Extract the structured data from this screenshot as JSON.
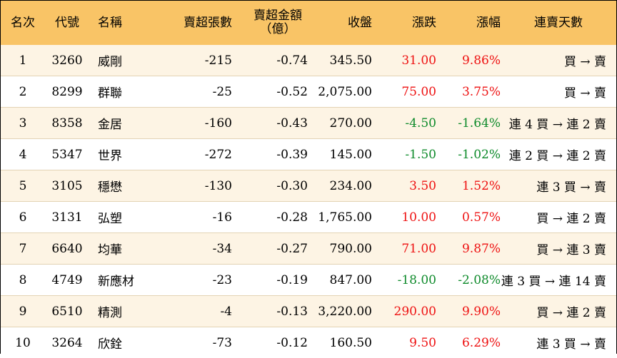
{
  "headers": {
    "rank": "名次",
    "code": "代號",
    "name": "名稱",
    "net_sell_lots": "賣超張數",
    "net_sell_amount_line1": "賣超金額",
    "net_sell_amount_line2": "（億）",
    "close": "收盤",
    "change": "漲跌",
    "change_pct": "漲幅",
    "streak": "連賣天數"
  },
  "colors": {
    "header_bg": "#f9c466",
    "row_alt_bg": "#fdf4e4",
    "up": "#ee1111",
    "down": "#0d8a2a"
  },
  "rows": [
    {
      "rank": "1",
      "code": "3260",
      "name": "威剛",
      "lots": "-215",
      "amount": "-0.74",
      "close": "345.50",
      "change": "31.00",
      "pct": "9.86%",
      "dir": "pos",
      "streak": "買 → 賣"
    },
    {
      "rank": "2",
      "code": "8299",
      "name": "群聯",
      "lots": "-25",
      "amount": "-0.52",
      "close": "2,075.00",
      "change": "75.00",
      "pct": "3.75%",
      "dir": "pos",
      "streak": "買 → 賣"
    },
    {
      "rank": "3",
      "code": "8358",
      "name": "金居",
      "lots": "-160",
      "amount": "-0.43",
      "close": "270.00",
      "change": "-4.50",
      "pct": "-1.64%",
      "dir": "neg",
      "streak": "連 4 買 → 連 2 賣"
    },
    {
      "rank": "4",
      "code": "5347",
      "name": "世界",
      "lots": "-272",
      "amount": "-0.39",
      "close": "145.00",
      "change": "-1.50",
      "pct": "-1.02%",
      "dir": "neg",
      "streak": "連 2 買 → 連 2 賣"
    },
    {
      "rank": "5",
      "code": "3105",
      "name": "穩懋",
      "lots": "-130",
      "amount": "-0.30",
      "close": "234.00",
      "change": "3.50",
      "pct": "1.52%",
      "dir": "pos",
      "streak": "連 3 買 → 賣"
    },
    {
      "rank": "6",
      "code": "3131",
      "name": "弘塑",
      "lots": "-16",
      "amount": "-0.28",
      "close": "1,765.00",
      "change": "10.00",
      "pct": "0.57%",
      "dir": "pos",
      "streak": "買 → 連 2 賣"
    },
    {
      "rank": "7",
      "code": "6640",
      "name": "均華",
      "lots": "-34",
      "amount": "-0.27",
      "close": "790.00",
      "change": "71.00",
      "pct": "9.87%",
      "dir": "pos",
      "streak": "買 → 連 3 賣"
    },
    {
      "rank": "8",
      "code": "4749",
      "name": "新應材",
      "lots": "-23",
      "amount": "-0.19",
      "close": "847.00",
      "change": "-18.00",
      "pct": "-2.08%",
      "dir": "neg",
      "streak": "連 3 買 → 連 14 賣"
    },
    {
      "rank": "9",
      "code": "6510",
      "name": "精測",
      "lots": "-4",
      "amount": "-0.13",
      "close": "3,220.00",
      "change": "290.00",
      "pct": "9.90%",
      "dir": "pos",
      "streak": "買 → 連 2 賣"
    },
    {
      "rank": "10",
      "code": "3264",
      "name": "欣銓",
      "lots": "-73",
      "amount": "-0.12",
      "close": "160.50",
      "change": "9.50",
      "pct": "6.29%",
      "dir": "pos",
      "streak": "連 3 買 → 賣"
    }
  ]
}
